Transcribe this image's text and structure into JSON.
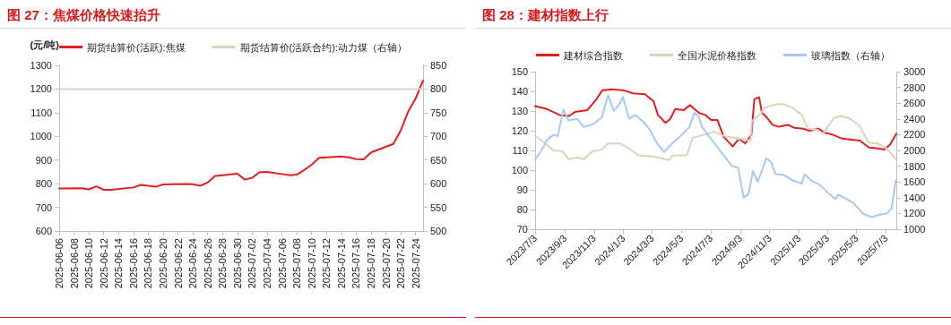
{
  "chart_data": [
    {
      "type": "line",
      "title": "图 27：焦煤价格快速抬升",
      "ylabel": "(元/吨)",
      "legend": "top",
      "marker": "none",
      "line_style": "solid",
      "xlim": [
        "2025-06-06",
        "2025-07-25"
      ],
      "xticks": [
        "2025-06-06",
        "2025-06-08",
        "2025-06-10",
        "2025-06-12",
        "2025-06-14",
        "2025-06-16",
        "2025-06-18",
        "2025-06-20",
        "2025-06-22",
        "2025-06-24",
        "2025-06-26",
        "2025-06-28",
        "2025-06-30",
        "2025-07-02",
        "2025-07-04",
        "2025-07-06",
        "2025-07-08",
        "2025-07-10",
        "2025-07-12",
        "2025-07-14",
        "2025-07-16",
        "2025-07-18",
        "2025-07-20",
        "2025-07-22",
        "2025-07-24"
      ],
      "ylim": [
        600,
        1300
      ],
      "yticks": [
        600,
        700,
        800,
        900,
        1000,
        1100,
        1200,
        1300
      ],
      "y2lim": [
        500,
        850
      ],
      "y2ticks": [
        500,
        550,
        600,
        650,
        700,
        750,
        800,
        850
      ],
      "series": [
        {
          "name": "期货结算价(活跃):焦煤",
          "color": "#e02020",
          "x": [
            "2025-06-06",
            "2025-06-09",
            "2025-06-10",
            "2025-06-11",
            "2025-06-12",
            "2025-06-13",
            "2025-06-16",
            "2025-06-17",
            "2025-06-19",
            "2025-06-20",
            "2025-06-23",
            "2025-06-24",
            "2025-06-25",
            "2025-06-26",
            "2025-06-27",
            "2025-06-30",
            "2025-07-01",
            "2025-07-02",
            "2025-07-03",
            "2025-07-04",
            "2025-07-07",
            "2025-07-08",
            "2025-07-09",
            "2025-07-10",
            "2025-07-11",
            "2025-07-14",
            "2025-07-15",
            "2025-07-16",
            "2025-07-17",
            "2025-07-18",
            "2025-07-21",
            "2025-07-22",
            "2025-07-23",
            "2025-07-24",
            "2025-07-25"
          ],
          "values": [
            780,
            781,
            776,
            789,
            774,
            774,
            784,
            795,
            787,
            797,
            799,
            798,
            791,
            805,
            833,
            842,
            817,
            825,
            849,
            850,
            836,
            838,
            858,
            880,
            909,
            915,
            911,
            904,
            903,
            932,
            968,
            1025,
            1105,
            1160,
            1236
          ]
        },
        {
          "name": "期货结算价(活跃合约):动力煤（右轴）",
          "color": "#ddd3bd",
          "axis": "y2",
          "x": [
            "2025-06-06",
            "2025-07-25"
          ],
          "values": [
            800,
            800
          ]
        }
      ]
    },
    {
      "type": "line",
      "title": "图 28：建材指数上行",
      "legend": "top",
      "marker": "none",
      "line_style": "solid",
      "xlim": [
        "2023-07-03",
        "2025-07-25"
      ],
      "xticks": [
        {
          "value": "2023-07-03",
          "label": "2023/7/3"
        },
        {
          "value": "2023-09-03",
          "label": "2023/9/3"
        },
        {
          "value": "2023-11-03",
          "label": "2023/11/3"
        },
        {
          "value": "2024-01-03",
          "label": "2024/1/3"
        },
        {
          "value": "2024-03-03",
          "label": "2024/3/3"
        },
        {
          "value": "2024-05-03",
          "label": "2024/5/3"
        },
        {
          "value": "2024-07-03",
          "label": "2024/7/3"
        },
        {
          "value": "2024-09-03",
          "label": "2024/9/3"
        },
        {
          "value": "2024-11-03",
          "label": "2024/11/3"
        },
        {
          "value": "2025-01-03",
          "label": "2025/1/3"
        },
        {
          "value": "2025-03-03",
          "label": "2025/3/3"
        },
        {
          "value": "2025-05-03",
          "label": "2025/5/3"
        },
        {
          "value": "2025-07-03",
          "label": "2025/7/3"
        }
      ],
      "ylim": [
        70,
        150
      ],
      "yticks": [
        70,
        80,
        90,
        100,
        110,
        120,
        130,
        140,
        150
      ],
      "y2lim": [
        1000,
        3000
      ],
      "y2ticks": [
        1000,
        1200,
        1400,
        1600,
        1800,
        2000,
        2200,
        2400,
        2600,
        2800,
        3000
      ],
      "series": [
        {
          "name": "建材综合指数",
          "color": "#e02020",
          "x": [
            "2023-07-03",
            "2023-07-28",
            "2023-08-23",
            "2023-09-12",
            "2023-09-24",
            "2023-10-20",
            "2023-11-08",
            "2023-11-20",
            "2023-12-09",
            "2024-01-04",
            "2024-01-23",
            "2024-02-17",
            "2024-03-06",
            "2024-03-15",
            "2024-03-31",
            "2024-04-10",
            "2024-04-20",
            "2024-05-08",
            "2024-05-21",
            "2024-06-09",
            "2024-06-22",
            "2024-07-04",
            "2024-07-17",
            "2024-07-24",
            "2024-07-30",
            "2024-08-18",
            "2024-08-31",
            "2024-09-13",
            "2024-09-23",
            "2024-09-26",
            "2024-10-02",
            "2024-10-12",
            "2024-10-18",
            "2024-10-27",
            "2024-11-09",
            "2024-11-22",
            "2024-12-11",
            "2024-12-24",
            "2025-01-12",
            "2025-01-25",
            "2025-02-13",
            "2025-02-26",
            "2025-03-14",
            "2025-04-03",
            "2025-04-22",
            "2025-05-10",
            "2025-05-29",
            "2025-06-17",
            "2025-06-30",
            "2025-07-12",
            "2025-07-25"
          ],
          "values": [
            132.5,
            131,
            128,
            127.5,
            129.5,
            130.5,
            136,
            140.5,
            141,
            140.5,
            139,
            138.5,
            135,
            128,
            124,
            126,
            131,
            130.5,
            133,
            129,
            128,
            125.5,
            125.5,
            121,
            117,
            112,
            116,
            113.5,
            117,
            118,
            136,
            137,
            129,
            127,
            123,
            122,
            123,
            121.5,
            121,
            120,
            121,
            119,
            118,
            116,
            115.5,
            115,
            111.5,
            111,
            110.5,
            113,
            118.5
          ]
        },
        {
          "name": "全国水泥价格指数",
          "color": "#ddd3bd",
          "x": [
            "2023-07-03",
            "2023-07-22",
            "2023-08-10",
            "2023-08-29",
            "2023-09-11",
            "2023-09-29",
            "2023-10-12",
            "2023-10-31",
            "2023-11-19",
            "2023-12-02",
            "2023-12-27",
            "2024-01-15",
            "2024-02-03",
            "2024-02-28",
            "2024-03-24",
            "2024-04-06",
            "2024-04-16",
            "2024-05-14",
            "2024-05-27",
            "2024-06-21",
            "2024-07-10",
            "2024-08-04",
            "2024-08-29",
            "2024-09-24",
            "2024-09-27",
            "2024-10-13",
            "2024-10-25",
            "2024-11-20",
            "2024-12-02",
            "2024-12-21",
            "2025-01-09",
            "2025-01-22",
            "2025-02-10",
            "2025-02-22",
            "2025-03-07",
            "2025-03-17",
            "2025-04-01",
            "2025-04-20",
            "2025-05-09",
            "2025-05-28",
            "2025-06-16",
            "2025-07-05",
            "2025-07-24"
          ],
          "values": [
            117.5,
            114,
            110,
            109.5,
            105.5,
            106.5,
            105.5,
            109.5,
            110.5,
            113.5,
            113.5,
            111,
            107.5,
            107,
            106,
            105,
            107.5,
            107.5,
            116.5,
            118,
            119.5,
            117,
            116,
            115,
            125,
            128,
            132,
            133.5,
            133.5,
            131.5,
            128,
            121,
            120.5,
            118.5,
            123,
            126.5,
            127.5,
            126,
            122.5,
            114,
            113.5,
            111,
            105.5
          ]
        },
        {
          "name": "玻璃指数（右轴）",
          "color": "#a6c8f5",
          "axis": "y2",
          "x": [
            "2023-07-03",
            "2023-07-16",
            "2023-07-28",
            "2023-08-10",
            "2023-08-19",
            "2023-08-31",
            "2023-09-11",
            "2023-09-29",
            "2023-10-12",
            "2023-10-31",
            "2023-11-19",
            "2023-12-02",
            "2023-12-14",
            "2023-12-27",
            "2024-01-02",
            "2024-01-15",
            "2024-01-28",
            "2024-02-16",
            "2024-02-28",
            "2024-03-12",
            "2024-03-28",
            "2024-04-12",
            "2024-05-01",
            "2024-05-20",
            "2024-05-30",
            "2024-06-08",
            "2024-06-15",
            "2024-06-27",
            "2024-07-16",
            "2024-08-04",
            "2024-08-17",
            "2024-08-29",
            "2024-09-10",
            "2024-09-20",
            "2024-09-29",
            "2024-10-09",
            "2024-10-18",
            "2024-10-27",
            "2024-11-06",
            "2024-11-15",
            "2024-12-02",
            "2024-12-21",
            "2025-01-09",
            "2025-01-15",
            "2025-01-28",
            "2025-02-16",
            "2025-03-07",
            "2025-03-20",
            "2025-03-26",
            "2025-04-08",
            "2025-04-27",
            "2025-05-16",
            "2025-06-04",
            "2025-06-16",
            "2025-07-05",
            "2025-07-15",
            "2025-07-24"
          ],
          "values": [
            1880,
            2000,
            2130,
            2200,
            2180,
            2520,
            2380,
            2400,
            2300,
            2330,
            2420,
            2700,
            2500,
            2600,
            2680,
            2400,
            2450,
            2350,
            2250,
            2100,
            1980,
            2080,
            2180,
            2300,
            2480,
            2430,
            2300,
            2200,
            2050,
            1900,
            1800,
            1780,
            1400,
            1450,
            1740,
            1600,
            1750,
            1900,
            1850,
            1700,
            1690,
            1620,
            1580,
            1700,
            1620,
            1560,
            1450,
            1380,
            1440,
            1400,
            1330,
            1200,
            1150,
            1180,
            1200,
            1260,
            1620
          ]
        }
      ]
    }
  ]
}
